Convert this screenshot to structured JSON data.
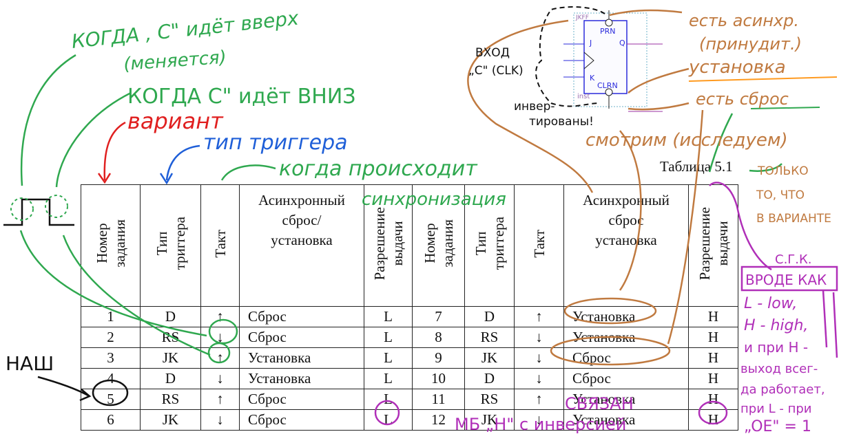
{
  "caption": "Таблица 5.1",
  "headers": [
    "Номер\nзадания",
    "Тип\nтриггера",
    "Такт",
    "Асинхронный\nсброс/\nустановка",
    "Разрешение\nвыдачи",
    "Номер\nзадания",
    "Тип\nтриггера",
    "Такт",
    "Асинхронный\nсброс\nустановка",
    "Разрешение\nвыдачи"
  ],
  "rows": [
    [
      "1",
      "D",
      "↑",
      "Сброс",
      "L",
      "7",
      "D",
      "↑",
      "Установка",
      "H"
    ],
    [
      "2",
      "RS",
      "↓",
      "Сброс",
      "L",
      "8",
      "RS",
      "↓",
      "Установка",
      "H"
    ],
    [
      "3",
      "JK",
      "↑",
      "Установка",
      "L",
      "9",
      "JK",
      "↓",
      "Сброс",
      "H"
    ],
    [
      "4",
      "D",
      "↓",
      "Установка",
      "L",
      "10",
      "D",
      "↓",
      "Сброс",
      "H"
    ],
    [
      "5",
      "RS",
      "↑",
      "Сброс",
      "L",
      "11",
      "RS",
      "↑",
      "Установка",
      "H"
    ],
    [
      "6",
      "JK",
      "↓",
      "Сброс",
      "L",
      "12",
      "JK",
      "↓",
      "Установка",
      "H"
    ]
  ],
  "schematic": {
    "block_name": "JKFF",
    "pin_prn": "PRN",
    "pin_j": "J",
    "pin_q": "Q",
    "pin_k": "K",
    "pin_clrn": "CLRN",
    "instance": "inst"
  },
  "annotations": {
    "when_c_up_1": "КОГДА , С\" идёт вверх",
    "when_c_up_2": "(меняется)",
    "when_c_down": "КОГДА С\" идёт ВНИЗ",
    "variant": "вариант",
    "trigger_type": "тип триггера",
    "sync_1": "когда происходит",
    "sync_2": "синхронизация",
    "clk_input_1": "ВХОД",
    "clk_input_2": "„С\" (CLK)",
    "inverted_1": "инвер-",
    "inverted_2": "тированы!",
    "async_1": "есть асинхр.",
    "async_2": "(принудит.)",
    "async_3": "установка",
    "reset": "есть сброс",
    "look_1": "смотрим (исследуем)",
    "only_1": "ТОЛЬКО",
    "only_2": "ТО, ЧТО",
    "only_3": "В ВАРИАНТЕ",
    "ours": "НАШ",
    "linked": "СВЯЗАН",
    "inverse": "МБ „Н\" с инверсией",
    "right_1": "С.Г.К.",
    "right_2": "ВРОДЕ КАК",
    "right_3": "L - low,",
    "right_4": "H - high,",
    "right_5": "и при H -",
    "right_6": "выход всег-",
    "right_7": "да работает,",
    "right_8": "при L - при",
    "right_9": "„OE\" = 1"
  }
}
